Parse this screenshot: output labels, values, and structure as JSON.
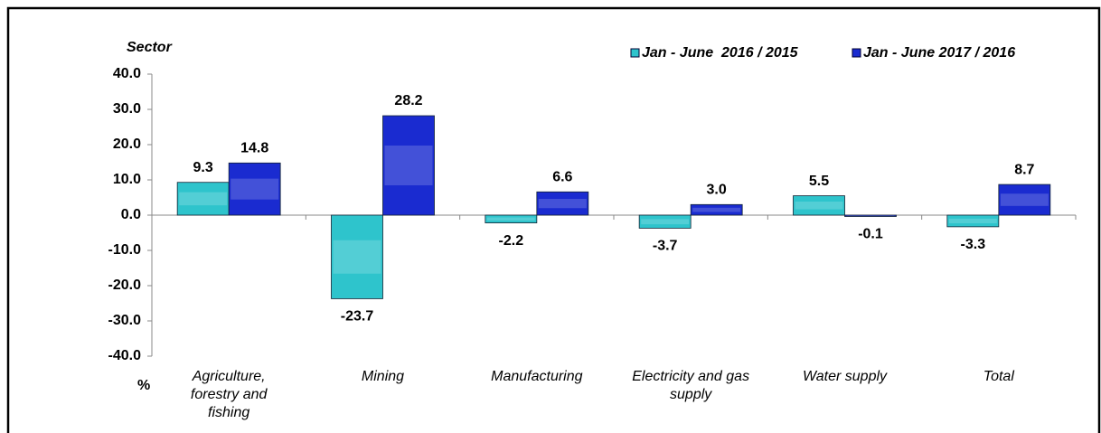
{
  "chart_data": {
    "type": "bar",
    "y_label": "Sector",
    "y_unit": "%",
    "categories": [
      "Agriculture, forestry and fishing",
      "Mining",
      "Manufacturing",
      "Electricity and gas supply",
      "Water supply",
      "Total"
    ],
    "series": [
      {
        "name": "Jan - June  2016 / 2015",
        "color": "#2ec4cc",
        "values": [
          9.3,
          -23.7,
          -2.2,
          -3.7,
          5.5,
          -3.3
        ]
      },
      {
        "name": "Jan - June 2017 / 2016",
        "color": "#1a2bd0",
        "values": [
          14.8,
          28.2,
          6.6,
          3.0,
          -0.1,
          8.7
        ],
        "value_labels": [
          "14.8",
          "28.2",
          "6.6",
          "3.0",
          "-0.1",
          "8.7"
        ]
      }
    ],
    "ylim": [
      -40,
      40
    ],
    "yticks": [
      {
        "value": -40,
        "label": "-40.0"
      },
      {
        "value": -30,
        "label": "-30.0"
      },
      {
        "value": -20,
        "label": "-20.0"
      },
      {
        "value": -10,
        "label": "-10.0"
      },
      {
        "value": 0,
        "label": "0.0"
      },
      {
        "value": 10,
        "label": "10.0"
      },
      {
        "value": 20,
        "label": "20.0"
      },
      {
        "value": 30,
        "label": "30.0"
      },
      {
        "value": 40,
        "label": "40.0"
      }
    ],
    "legend": "top-right",
    "grid": false
  }
}
